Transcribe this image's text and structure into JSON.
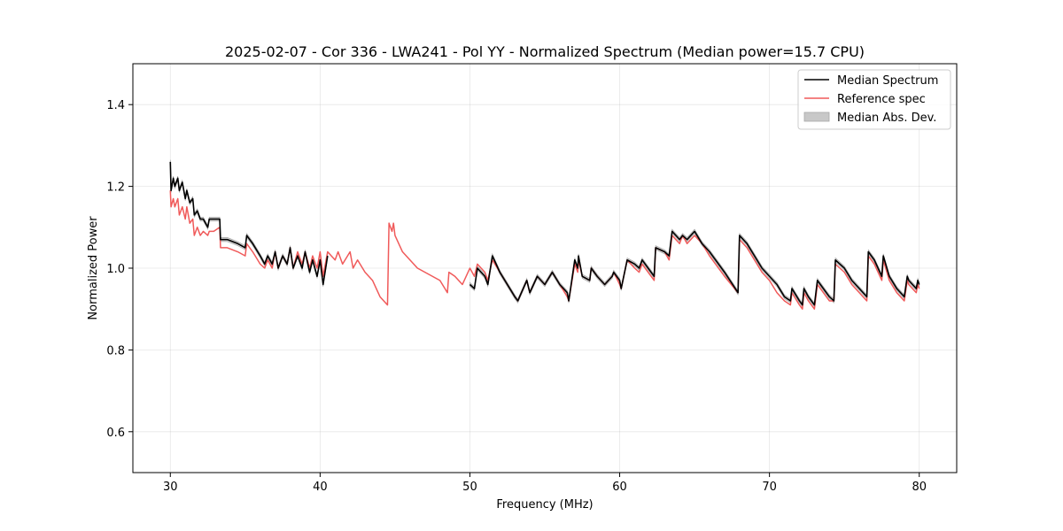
{
  "chart_data": {
    "type": "line",
    "title": "2025-02-07 - Cor 336 - LWA241 - Pol YY - Normalized Spectrum (Median power=15.7 CPU)",
    "xlabel": "Frequency (MHz)",
    "ylabel": "Normalized Power",
    "xlim": [
      27.5,
      82.5
    ],
    "ylim": [
      0.5,
      1.5
    ],
    "xticks": [
      30,
      40,
      50,
      60,
      70,
      80
    ],
    "yticks": [
      0.6,
      0.8,
      1.0,
      1.2,
      1.4
    ],
    "xtick_labels": [
      "30",
      "40",
      "50",
      "60",
      "70",
      "80"
    ],
    "ytick_labels": [
      "0.6",
      "0.8",
      "1.0",
      "1.2",
      "1.4"
    ],
    "grid": true,
    "legend_position": "top-right",
    "series": [
      {
        "name": "Median Spectrum",
        "color": "#000000",
        "segments": [
          {
            "x": [
              30.0,
              30.05,
              30.2,
              30.3,
              30.5,
              30.6,
              30.8,
              31.0,
              31.1,
              31.3,
              31.5,
              31.6,
              31.8,
              32.0,
              32.2,
              32.5,
              32.6,
              32.9,
              33.3,
              33.35,
              33.8,
              34.5,
              35.0,
              35.1,
              35.5,
              36.0,
              36.3,
              36.5,
              36.8,
              37.0,
              37.2,
              37.5,
              37.8,
              38.0,
              38.2,
              38.5,
              38.8,
              39.0,
              39.3,
              39.5,
              39.8,
              40.0,
              40.2,
              40.5
            ],
            "y": [
              1.26,
              1.19,
              1.22,
              1.2,
              1.22,
              1.19,
              1.21,
              1.17,
              1.19,
              1.16,
              1.17,
              1.13,
              1.14,
              1.12,
              1.12,
              1.1,
              1.12,
              1.12,
              1.12,
              1.07,
              1.07,
              1.06,
              1.05,
              1.08,
              1.06,
              1.03,
              1.01,
              1.03,
              1.01,
              1.04,
              1.0,
              1.03,
              1.01,
              1.05,
              1.0,
              1.03,
              1.0,
              1.04,
              0.99,
              1.02,
              0.98,
              1.02,
              0.96,
              1.03
            ]
          },
          {
            "x": [
              50.0,
              50.3,
              50.5,
              51.0,
              51.2,
              51.5,
              52.0,
              53.0,
              53.2,
              53.8,
              54.0,
              54.5,
              55.0,
              55.5,
              56.0,
              56.5,
              56.6,
              57.0,
              57.2,
              57.25,
              57.5,
              58.0,
              58.1,
              58.5,
              59.0,
              59.5,
              59.6,
              60.0,
              60.1,
              60.5,
              61.0,
              61.3,
              61.5,
              62.3,
              62.4,
              63.0,
              63.3,
              63.5,
              64.0,
              64.2,
              64.5,
              65.0,
              65.5,
              66.0,
              67.0,
              67.9,
              68.0,
              68.5,
              69.0,
              69.5,
              70.0,
              70.5,
              71.0,
              71.4,
              71.5,
              72.0,
              72.2,
              72.3,
              72.6,
              73.0,
              73.2,
              74.0,
              74.3,
              74.4,
              75.0,
              75.5,
              76.0,
              76.5,
              76.6,
              77.0,
              77.5,
              77.6,
              78.0,
              78.5,
              79.0,
              79.2,
              79.3,
              79.8,
              79.9,
              80.0
            ],
            "y": [
              0.96,
              0.95,
              1.0,
              0.98,
              0.96,
              1.03,
              0.99,
              0.93,
              0.92,
              0.97,
              0.94,
              0.98,
              0.96,
              0.99,
              0.96,
              0.94,
              0.92,
              1.02,
              1.0,
              1.03,
              0.98,
              0.97,
              1.0,
              0.98,
              0.96,
              0.98,
              0.99,
              0.97,
              0.95,
              1.02,
              1.01,
              1.0,
              1.02,
              0.98,
              1.05,
              1.04,
              1.03,
              1.09,
              1.07,
              1.08,
              1.07,
              1.09,
              1.06,
              1.04,
              0.99,
              0.94,
              1.08,
              1.06,
              1.03,
              1.0,
              0.98,
              0.96,
              0.93,
              0.92,
              0.95,
              0.92,
              0.91,
              0.95,
              0.93,
              0.91,
              0.97,
              0.93,
              0.92,
              1.02,
              1.0,
              0.97,
              0.95,
              0.93,
              1.04,
              1.02,
              0.98,
              1.03,
              0.98,
              0.95,
              0.93,
              0.98,
              0.97,
              0.95,
              0.97,
              0.96
            ]
          }
        ]
      },
      {
        "name": "Reference spec",
        "color": "#f05a5a",
        "segments": [
          {
            "x": [
              30.0,
              30.05,
              30.2,
              30.3,
              30.5,
              30.6,
              30.8,
              31.0,
              31.1,
              31.3,
              31.5,
              31.6,
              31.8,
              32.0,
              32.2,
              32.5,
              32.6,
              32.9,
              33.3,
              33.35,
              33.8,
              34.5,
              35.0,
              35.1,
              35.5,
              36.0,
              36.3,
              36.5,
              36.8,
              37.0,
              37.2,
              37.5,
              37.8,
              38.0,
              38.2,
              38.5,
              38.8,
              39.0,
              39.3,
              39.5,
              39.8,
              40.0,
              40.2,
              40.5,
              41.0,
              41.2,
              41.5,
              42.0,
              42.2,
              42.5,
              43.0,
              43.5,
              44.0,
              44.5,
              44.6,
              44.8,
              44.9,
              45.0,
              45.5,
              46.0,
              46.5,
              47.0,
              47.5,
              48.0,
              48.5,
              48.6,
              49.0,
              49.5,
              50.0,
              50.3,
              50.5,
              51.0,
              51.2,
              51.5,
              52.0,
              53.0,
              53.2,
              53.8,
              54.0,
              54.5,
              55.0,
              55.5,
              56.0,
              56.5,
              56.6,
              57.0,
              57.2,
              57.25,
              57.5,
              58.0,
              58.1,
              58.5,
              59.0,
              59.5,
              59.6,
              60.0,
              60.1,
              60.5,
              61.0,
              61.3,
              61.5,
              62.3,
              62.4,
              63.0,
              63.3,
              63.5,
              64.0,
              64.2,
              64.5,
              65.0,
              65.5,
              66.0,
              67.0,
              67.9,
              68.0,
              68.5,
              69.0,
              69.5,
              70.0,
              70.5,
              71.0,
              71.4,
              71.5,
              72.0,
              72.2,
              72.3,
              72.6,
              73.0,
              73.2,
              74.0,
              74.3,
              74.4,
              75.0,
              75.5,
              76.0,
              76.5,
              76.6,
              77.0,
              77.5,
              77.6,
              78.0,
              78.5,
              79.0,
              79.2,
              79.3,
              79.8,
              79.9,
              80.0
            ],
            "y": [
              1.19,
              1.15,
              1.17,
              1.15,
              1.17,
              1.13,
              1.15,
              1.12,
              1.15,
              1.11,
              1.12,
              1.08,
              1.1,
              1.08,
              1.09,
              1.08,
              1.09,
              1.09,
              1.1,
              1.05,
              1.05,
              1.04,
              1.03,
              1.06,
              1.04,
              1.01,
              1.0,
              1.02,
              1.0,
              1.04,
              1.0,
              1.03,
              1.01,
              1.05,
              1.0,
              1.04,
              1.01,
              1.04,
              1.0,
              1.03,
              1.0,
              1.04,
              0.98,
              1.04,
              1.02,
              1.04,
              1.01,
              1.04,
              1.0,
              1.02,
              0.99,
              0.97,
              0.93,
              0.91,
              1.11,
              1.09,
              1.11,
              1.08,
              1.04,
              1.02,
              1.0,
              0.99,
              0.98,
              0.97,
              0.94,
              0.99,
              0.98,
              0.96,
              1.0,
              0.98,
              1.01,
              0.99,
              0.97,
              1.02,
              0.99,
              0.93,
              0.92,
              0.97,
              0.94,
              0.98,
              0.96,
              0.99,
              0.96,
              0.93,
              0.92,
              1.01,
              0.99,
              1.02,
              0.98,
              0.97,
              1.0,
              0.98,
              0.96,
              0.98,
              0.99,
              0.96,
              0.95,
              1.02,
              1.0,
              0.99,
              1.01,
              0.97,
              1.05,
              1.04,
              1.02,
              1.08,
              1.06,
              1.08,
              1.06,
              1.08,
              1.06,
              1.03,
              0.98,
              0.94,
              1.07,
              1.05,
              1.02,
              0.99,
              0.97,
              0.94,
              0.92,
              0.91,
              0.94,
              0.91,
              0.9,
              0.94,
              0.92,
              0.9,
              0.96,
              0.92,
              0.92,
              1.01,
              0.99,
              0.96,
              0.94,
              0.92,
              1.03,
              1.01,
              0.97,
              1.02,
              0.97,
              0.94,
              0.92,
              0.97,
              0.96,
              0.94,
              0.96,
              0.95
            ]
          }
        ]
      },
      {
        "name": "Median Abs. Dev.",
        "color": "#c8c8c8",
        "type": "band",
        "deviation": 0.005
      }
    ]
  }
}
